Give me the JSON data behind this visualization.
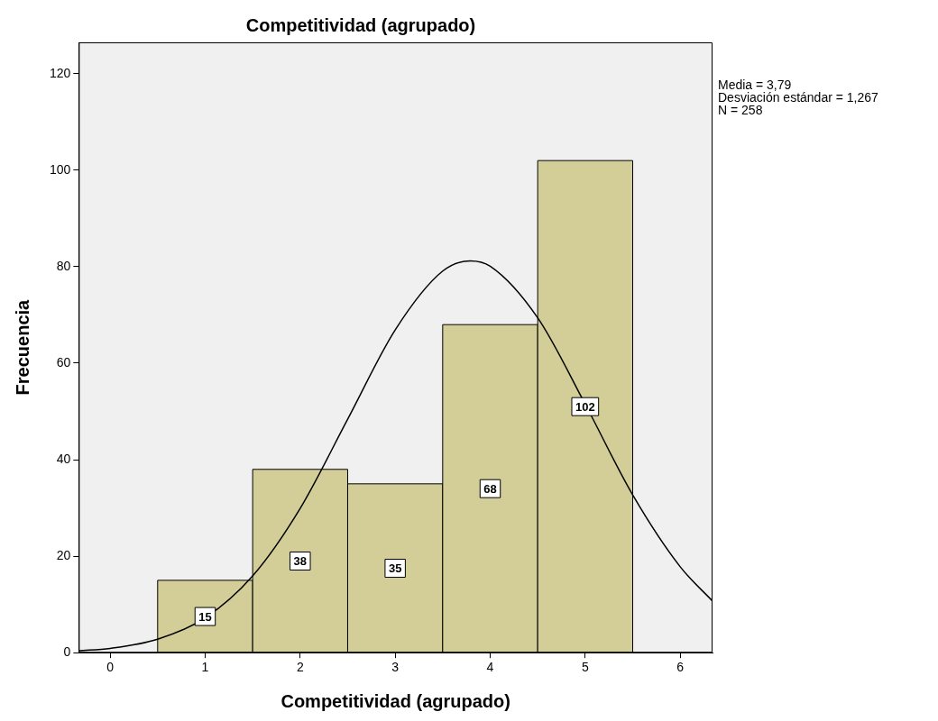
{
  "chart_data": {
    "type": "histogram",
    "title": "Competitividad (agrupado)",
    "xlabel": "Competitividad (agrupado)",
    "ylabel": "Frecuencia",
    "bins": [
      0.5,
      1.5,
      2.5,
      3.5,
      4.5,
      5.5
    ],
    "series": [
      {
        "color": "#d3ce98",
        "values": [
          15,
          38,
          35,
          68,
          102
        ],
        "value_labels": [
          "15",
          "38",
          "35",
          "68",
          "102"
        ]
      },
      {
        "type": "line",
        "color": "#000000",
        "x": [
          -0.33,
          0,
          0.5,
          1,
          1.5,
          2,
          2.5,
          3,
          3.5,
          3.79,
          4,
          4.5,
          5,
          5.5,
          6,
          6.34
        ],
        "values": [
          0.4,
          0.9,
          2.8,
          7.2,
          15.9,
          29.9,
          48.4,
          66.9,
          79.1,
          81.2,
          80.1,
          69.4,
          51.5,
          32.7,
          17.8,
          10.7
        ]
      }
    ],
    "xlim": [
      -0.33,
      6.34
    ],
    "xticks": [
      0,
      1,
      2,
      3,
      4,
      5,
      6
    ],
    "ylim": [
      0,
      126.5
    ],
    "yticks": [
      0,
      20,
      40,
      60,
      80,
      100,
      120
    ],
    "grid": false,
    "legend": false,
    "marker": "none",
    "annotations": [
      "Media = 3,79",
      "Desviación estándar = 1,267",
      "N = 258"
    ]
  }
}
